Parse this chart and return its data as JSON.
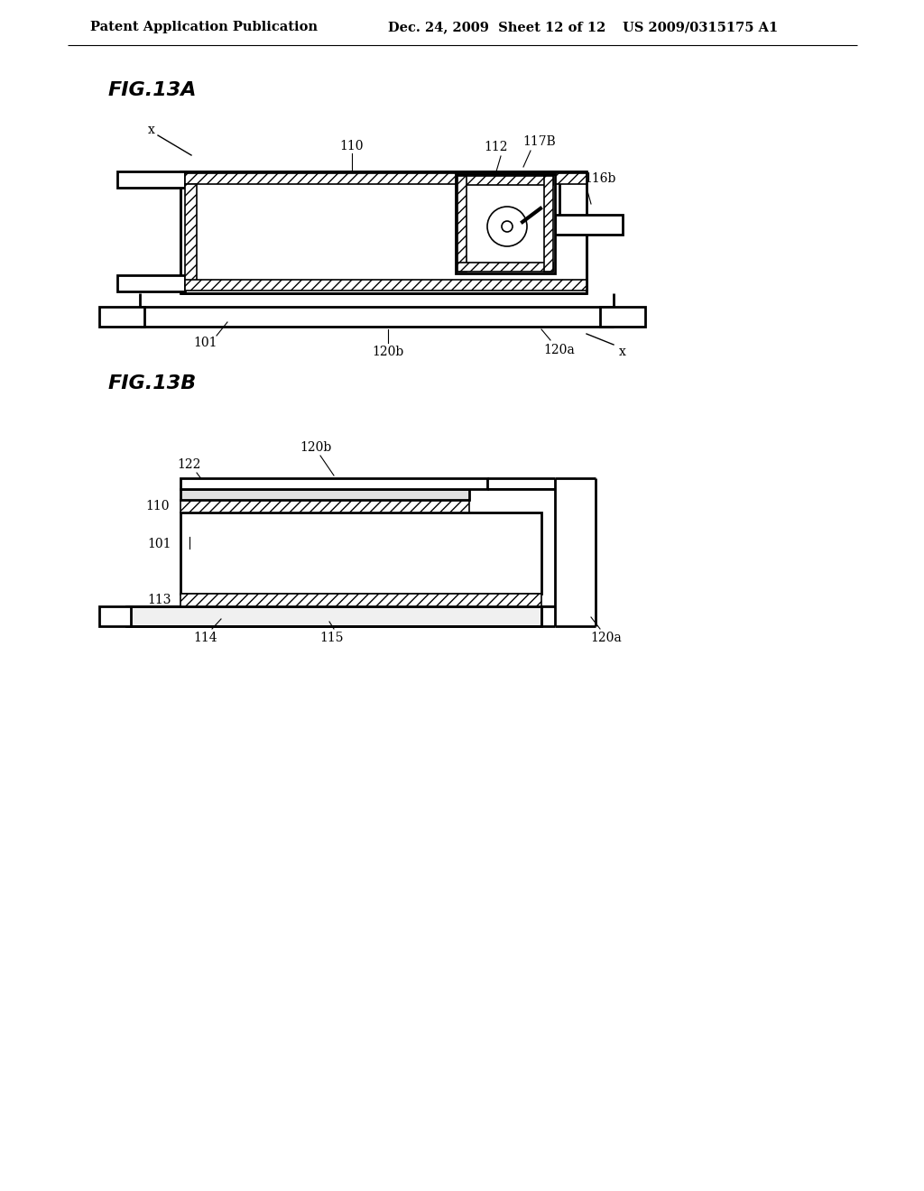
{
  "bg_color": "#ffffff",
  "line_color": "#000000",
  "header_text1": "Patent Application Publication",
  "header_text2": "Dec. 24, 2009  Sheet 12 of 12",
  "header_text3": "US 2009/0315175 A1",
  "fig13a_label": "FIG.13A",
  "fig13b_label": "FIG.13B",
  "header_fontsize": 10.5,
  "ref_fontsize": 10,
  "fig_label_fontsize": 16
}
